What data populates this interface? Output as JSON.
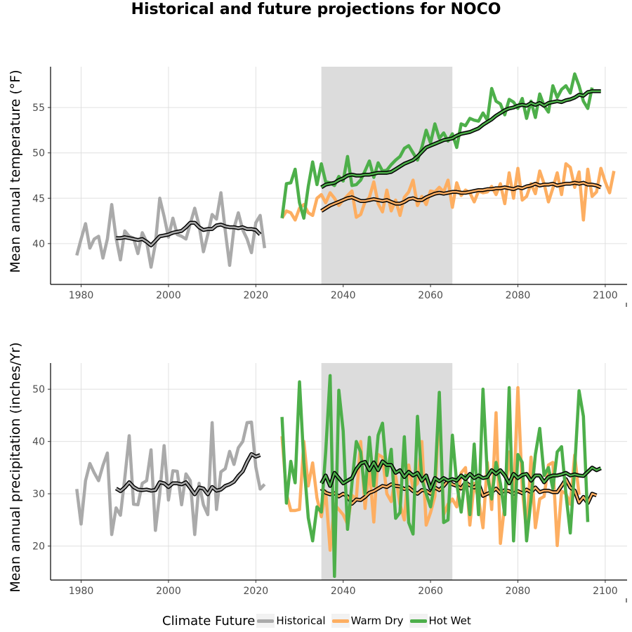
{
  "title": "Historical and future projections for NOCO",
  "legend": {
    "title": "Climate Future",
    "items": [
      {
        "label": "Historical",
        "color": "#aaaaaa"
      },
      {
        "label": "Warm Dry",
        "color": "#fdae61"
      },
      {
        "label": "Hot Wet",
        "color": "#4daf4a"
      }
    ]
  },
  "chart_data": [
    {
      "type": "line",
      "ylabel": "Mean annual temperature (°F)",
      "xlabel": "",
      "xlim": [
        1973,
        2105
      ],
      "ylim": [
        35.5,
        59.5
      ],
      "xticks": [
        1980,
        2000,
        2020,
        2040,
        2060,
        2080,
        2100
      ],
      "yticks": [
        40,
        45,
        50,
        55
      ],
      "shaded_period": [
        2035,
        2065
      ],
      "series": [
        {
          "name": "Historical",
          "x_start": 1979,
          "values": [
            38.7,
            40.5,
            42.2,
            39.5,
            40.5,
            40.8,
            38.4,
            40.5,
            44.3,
            40.6,
            38.2,
            41.4,
            40.8,
            40.6,
            38.9,
            41.2,
            40.2,
            37.4,
            40.0,
            45.0,
            43.0,
            40.7,
            42.8,
            41.0,
            40.8,
            40.5,
            42.2,
            43.9,
            42.0,
            39.1,
            41.0,
            43.2,
            42.7,
            45.6,
            41.4,
            37.6,
            41.7,
            43.4,
            41.5,
            40.5,
            39.0,
            42.3,
            43.1,
            39.5
          ]
        },
        {
          "name": "Historical (10-yr mean)",
          "smooth": true,
          "x_start": 1988,
          "values": [
            40.6,
            40.6,
            40.7,
            40.6,
            40.5,
            40.4,
            40.5,
            40.2,
            39.8,
            40.3,
            40.8,
            40.9,
            41.0,
            41.2,
            41.3,
            41.4,
            41.8,
            42.3,
            42.3,
            41.8,
            41.5,
            41.6,
            41.6,
            42.0,
            42.1,
            41.9,
            41.8,
            41.8,
            41.7,
            41.8,
            41.6,
            41.6,
            41.5,
            41.0
          ]
        },
        {
          "name": "Warm Dry",
          "x_start": 2026,
          "values": [
            42.8,
            43.6,
            43.4,
            42.6,
            43.9,
            44.3,
            43.4,
            43.1,
            45.0,
            45.4,
            44.5,
            45.6,
            45.0,
            44.2,
            44.8,
            45.3,
            45.8,
            42.9,
            43.2,
            44.6,
            45.1,
            46.8,
            44.4,
            43.5,
            45.9,
            43.6,
            44.8,
            43.1,
            45.1,
            45.7,
            47.0,
            44.2,
            45.2,
            44.3,
            45.8,
            45.7,
            46.2,
            45.7,
            47.0,
            44.0,
            46.7,
            45.3,
            45.9,
            45.6,
            44.6,
            45.8,
            45.6,
            45.7,
            46.3,
            45.4,
            46.6,
            44.4,
            47.8,
            45.0,
            48.3,
            44.8,
            45.2,
            46.6,
            45.5,
            48.0,
            46.6,
            44.6,
            46.1,
            47.8,
            45.4,
            48.8,
            48.4,
            46.2,
            47.9,
            42.6,
            48.2,
            45.2,
            45.7,
            48.3,
            46.8,
            45.6,
            48.0
          ]
        },
        {
          "name": "Warm Dry (10-yr mean)",
          "smooth": true,
          "x_start": 2035,
          "values": [
            43.6,
            43.9,
            44.2,
            44.4,
            44.6,
            44.8,
            45.0,
            45.1,
            44.9,
            44.7,
            44.7,
            44.8,
            44.9,
            44.8,
            44.7,
            44.8,
            44.6,
            44.4,
            44.4,
            44.6,
            44.9,
            45.0,
            44.8,
            44.8,
            45.1,
            45.3,
            45.5,
            45.6,
            45.5,
            45.6,
            45.7,
            45.7,
            45.6,
            45.6,
            45.7,
            45.8,
            45.9,
            45.9,
            46.0,
            46.0,
            46.1,
            46.1,
            46.2,
            46.1,
            46.0,
            46.2,
            46.1,
            46.3,
            46.4,
            46.6,
            46.4,
            46.5,
            46.5,
            46.6,
            46.4,
            46.5,
            46.6,
            46.6,
            46.7,
            46.6,
            46.7,
            46.5,
            46.5,
            46.4,
            46.2
          ]
        },
        {
          "name": "Hot Wet",
          "x_start": 2026,
          "values": [
            42.8,
            46.6,
            46.7,
            48.2,
            44.5,
            42.8,
            46.3,
            49.0,
            46.5,
            48.8,
            46.8,
            46.7,
            46.4,
            47.4,
            46.9,
            49.6,
            46.4,
            46.5,
            47.0,
            48.0,
            49.1,
            47.3,
            48.9,
            48.0,
            48.1,
            48.7,
            49.2,
            49.6,
            50.5,
            50.8,
            50.0,
            49.2,
            50.6,
            52.5,
            51.1,
            53.2,
            51.6,
            52.2,
            51.3,
            52.1,
            50.6,
            53.2,
            53.0,
            53.8,
            53.6,
            53.5,
            54.4,
            53.6,
            57.1,
            55.7,
            55.4,
            54.2,
            55.9,
            55.6,
            54.9,
            56.0,
            53.8,
            55.7,
            53.9,
            56.5,
            55.2,
            54.5,
            57.4,
            56.1,
            57.0,
            57.4,
            56.6,
            58.7,
            57.4,
            55.7,
            54.9,
            57.2
          ]
        },
        {
          "name": "Hot Wet (10-yr mean)",
          "smooth": true,
          "x_start": 2035,
          "values": [
            46.2,
            46.5,
            46.6,
            46.7,
            47.0,
            47.2,
            47.5,
            47.6,
            47.5,
            47.5,
            47.6,
            47.6,
            47.7,
            47.8,
            47.8,
            47.8,
            47.9,
            48.2,
            48.5,
            48.8,
            49.0,
            49.2,
            49.6,
            50.1,
            50.6,
            50.8,
            51.0,
            51.2,
            51.4,
            51.5,
            51.6,
            51.9,
            52.1,
            52.2,
            52.3,
            52.5,
            52.7,
            53.1,
            53.4,
            53.7,
            54.1,
            54.4,
            54.7,
            54.9,
            55.0,
            55.2,
            55.3,
            55.2,
            55.5,
            55.3,
            55.5,
            55.2,
            55.5,
            55.6,
            55.7,
            55.6,
            55.8,
            55.9,
            56.1,
            56.4,
            56.3,
            56.7,
            56.8,
            56.8,
            56.8
          ]
        }
      ]
    },
    {
      "type": "line",
      "ylabel": "Mean annual precipitation (inches/Yr)",
      "xlabel": "",
      "xlim": [
        1973,
        2105
      ],
      "ylim": [
        13.5,
        55.0
      ],
      "xticks": [
        1980,
        2000,
        2020,
        2040,
        2060,
        2080,
        2100
      ],
      "yticks": [
        20,
        30,
        40,
        50
      ],
      "shaded_period": [
        2035,
        2065
      ],
      "series": [
        {
          "name": "Historical",
          "x_start": 1979,
          "values": [
            30.9,
            24.2,
            32.5,
            35.8,
            34.0,
            32.5,
            35.4,
            37.8,
            22.2,
            27.3,
            25.9,
            33.0,
            41.1,
            28.0,
            27.9,
            32.0,
            32.5,
            38.4,
            23.0,
            30.0,
            39.2,
            28.8,
            34.4,
            34.3,
            27.9,
            33.8,
            32.5,
            22.2,
            32.0,
            27.9,
            26.0,
            43.6,
            27.0,
            34.2,
            34.8,
            38.1,
            35.6,
            38.8,
            40.0,
            43.6,
            43.7,
            35.1,
            30.9,
            31.8
          ]
        },
        {
          "name": "Historical (10-yr mean)",
          "smooth": true,
          "x_start": 1988,
          "values": [
            31.0,
            30.5,
            31.2,
            32.2,
            31.3,
            30.8,
            30.7,
            30.8,
            30.6,
            30.7,
            32.2,
            32.0,
            31.3,
            32.0,
            32.0,
            31.8,
            32.2,
            31.1,
            29.9,
            31.2,
            31.0,
            29.9,
            31.3,
            30.6,
            30.8,
            31.5,
            31.8,
            32.3,
            33.4,
            34.3,
            36.1,
            37.6,
            37.1,
            37.4
          ]
        },
        {
          "name": "Warm Dry",
          "x_start": 2026,
          "values": [
            41.0,
            30.0,
            26.8,
            26.8,
            27.0,
            40.0,
            31.5,
            35.9,
            29.2,
            25.6,
            30.5,
            19.2,
            28.0,
            27.0,
            26.0,
            24.2,
            29.7,
            29.0,
            40.0,
            27.2,
            35.0,
            24.6,
            37.5,
            37.0,
            30.0,
            28.5,
            33.4,
            28.0,
            25.0,
            35.5,
            31.0,
            32.0,
            40.0,
            24.0,
            26.4,
            29.5,
            47.0,
            26.0,
            28.0,
            29.0,
            27.5,
            34.0,
            35.0,
            24.0,
            32.0,
            29.0,
            23.5,
            36.0,
            27.0,
            45.5,
            20.5,
            28.0,
            38.0,
            29.0,
            50.3,
            31.0,
            22.6,
            37.0,
            23.5,
            29.0,
            29.5,
            35.5,
            36.0,
            20.1,
            30.5,
            30.0,
            28.0,
            37.4,
            29.8
          ]
        },
        {
          "name": "Warm Dry (10-yr mean)",
          "smooth": true,
          "x_start": 2035,
          "values": [
            31.0,
            30.2,
            29.9,
            30.1,
            29.5,
            30.0,
            29.5,
            28.1,
            28.9,
            28.8,
            29.4,
            30.2,
            30.5,
            31.0,
            31.5,
            31.3,
            31.8,
            31.5,
            31.4,
            30.9,
            31.2,
            30.5,
            30.0,
            30.7,
            30.6,
            30.0,
            31.2,
            30.7,
            31.5,
            32.5,
            31.8,
            31.5,
            31.0,
            32.2,
            31.6,
            31.2,
            32.0,
            29.6,
            30.0,
            30.3,
            31.0,
            30.1,
            30.7,
            30.5,
            30.0,
            30.5,
            30.1,
            30.8,
            30.3,
            31.2,
            30.3,
            30.6,
            30.6,
            30.3,
            30.3,
            31.5,
            32.8,
            31.2,
            30.6,
            28.3,
            29.4,
            28.2,
            30.0,
            29.7
          ]
        },
        {
          "name": "Hot Wet",
          "x_start": 2026,
          "values": [
            44.7,
            28.2,
            36.2,
            32.1,
            51.4,
            36.0,
            25.4,
            21.0,
            27.5,
            26.5,
            38.0,
            52.6,
            14.2,
            49.8,
            42.0,
            23.2,
            32.0,
            40.0,
            38.0,
            30.0,
            40.8,
            31.5,
            41.2,
            43.5,
            33.5,
            38.5,
            25.3,
            26.4,
            40.9,
            24.5,
            22.3,
            44.8,
            32.8,
            30.0,
            27.5,
            32.2,
            49.4,
            24.5,
            25.0,
            41.2,
            32.0,
            26.5,
            33.5,
            26.0,
            39.5,
            26.0,
            50.0,
            33.5,
            29.0,
            36.0,
            32.0,
            26.0,
            50.3,
            21.0,
            37.5,
            36.0,
            21.0,
            29.0,
            37.5,
            42.5,
            33.5,
            35.0,
            31.0,
            38.0,
            39.0,
            30.0,
            22.5,
            35.0,
            49.7,
            44.8,
            24.6
          ]
        },
        {
          "name": "Hot Wet (10-yr mean)",
          "smooth": true,
          "x_start": 2035,
          "values": [
            32.0,
            33.5,
            31.5,
            34.0,
            33.0,
            32.0,
            32.5,
            33.0,
            34.7,
            35.8,
            36.1,
            34.5,
            36.0,
            34.5,
            36.2,
            35.5,
            35.5,
            34.0,
            34.5,
            33.2,
            34.2,
            33.5,
            34.0,
            32.5,
            33.5,
            31.0,
            33.0,
            32.4,
            33.0,
            32.5,
            32.8,
            32.5,
            33.5,
            32.8,
            33.8,
            33.0,
            33.5,
            33.0,
            33.2,
            34.5,
            33.8,
            34.5,
            33.5,
            32.0,
            33.8,
            33.0,
            33.6,
            33.8,
            32.5,
            33.5,
            33.5,
            32.2,
            33.2,
            33.5,
            33.5,
            33.7,
            34.0,
            33.5,
            33.7,
            33.5,
            33.4,
            34.2,
            35.0,
            34.5,
            34.9
          ]
        }
      ]
    }
  ]
}
